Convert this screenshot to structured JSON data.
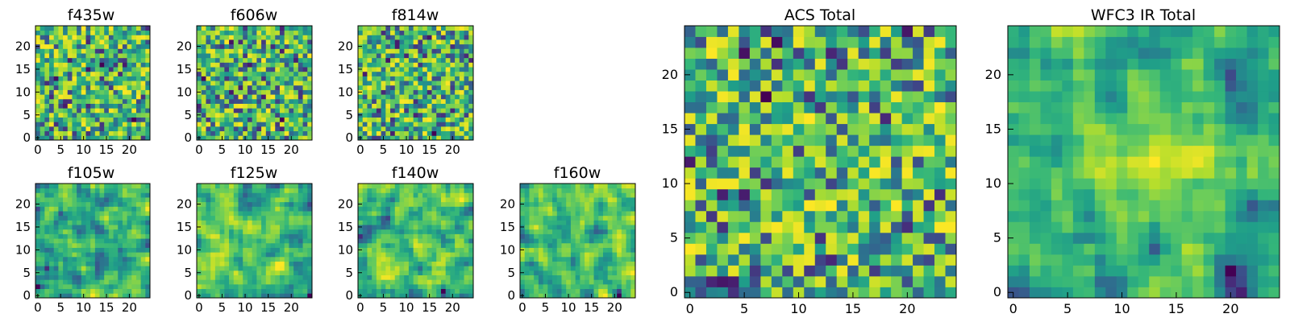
{
  "chart_data": [
    {
      "id": "f435w",
      "type": "heatmap",
      "title": "f435w",
      "grid_size": 25,
      "xlim": [
        0,
        24
      ],
      "ylim": [
        0,
        24
      ],
      "x_ticks": [
        "0",
        "5",
        "10",
        "15",
        "20"
      ],
      "y_ticks": [
        "0",
        "5",
        "10",
        "15",
        "20"
      ],
      "colormap": "viridis",
      "value_range": [
        0,
        1
      ],
      "texture": "noise",
      "seed": 11,
      "smooth": 0
    },
    {
      "id": "f606w",
      "type": "heatmap",
      "title": "f606w",
      "grid_size": 25,
      "xlim": [
        0,
        24
      ],
      "ylim": [
        0,
        24
      ],
      "x_ticks": [
        "0",
        "5",
        "10",
        "15",
        "20"
      ],
      "y_ticks": [
        "0",
        "5",
        "10",
        "15",
        "20"
      ],
      "colormap": "viridis",
      "value_range": [
        0,
        1
      ],
      "texture": "noise",
      "seed": 23,
      "smooth": 0
    },
    {
      "id": "f814w",
      "type": "heatmap",
      "title": "f814w",
      "grid_size": 25,
      "xlim": [
        0,
        24
      ],
      "ylim": [
        0,
        24
      ],
      "x_ticks": [
        "0",
        "5",
        "10",
        "15",
        "20"
      ],
      "y_ticks": [
        "0",
        "5",
        "10",
        "15",
        "20"
      ],
      "colormap": "viridis",
      "value_range": [
        0,
        1
      ],
      "texture": "noise",
      "seed": 37,
      "smooth": 0
    },
    {
      "id": "f105w",
      "type": "heatmap",
      "title": "f105w",
      "grid_size": 25,
      "xlim": [
        0,
        24
      ],
      "ylim": [
        0,
        24
      ],
      "x_ticks": [
        "0",
        "5",
        "10",
        "15",
        "20"
      ],
      "y_ticks": [
        "0",
        "5",
        "10",
        "15",
        "20"
      ],
      "colormap": "viridis",
      "value_range": [
        0,
        1
      ],
      "texture": "correlated noise",
      "seed": 41,
      "smooth": 1
    },
    {
      "id": "f125w",
      "type": "heatmap",
      "title": "f125w",
      "grid_size": 25,
      "xlim": [
        0,
        24
      ],
      "ylim": [
        0,
        24
      ],
      "x_ticks": [
        "0",
        "5",
        "10",
        "15",
        "20"
      ],
      "y_ticks": [
        "0",
        "5",
        "10",
        "15",
        "20"
      ],
      "colormap": "viridis",
      "value_range": [
        0,
        1
      ],
      "texture": "correlated noise",
      "seed": 53,
      "smooth": 1
    },
    {
      "id": "f140w",
      "type": "heatmap",
      "title": "f140w",
      "grid_size": 25,
      "xlim": [
        0,
        24
      ],
      "ylim": [
        0,
        24
      ],
      "x_ticks": [
        "0",
        "5",
        "10",
        "15",
        "20"
      ],
      "y_ticks": [
        "0",
        "5",
        "10",
        "15",
        "20"
      ],
      "colormap": "viridis",
      "value_range": [
        0,
        1
      ],
      "texture": "correlated noise",
      "seed": 67,
      "smooth": 1
    },
    {
      "id": "f160w",
      "type": "heatmap",
      "title": "f160w",
      "grid_size": 25,
      "xlim": [
        0,
        24
      ],
      "ylim": [
        0,
        24
      ],
      "x_ticks": [
        "0",
        "5",
        "10",
        "15",
        "20"
      ],
      "y_ticks": [
        "0",
        "5",
        "10",
        "15",
        "20"
      ],
      "colormap": "viridis",
      "value_range": [
        0,
        1
      ],
      "texture": "correlated noise",
      "seed": 79,
      "smooth": 1
    },
    {
      "id": "acs-total",
      "type": "heatmap",
      "title": "ACS Total",
      "grid_size": 25,
      "xlim": [
        0,
        24
      ],
      "ylim": [
        0,
        24
      ],
      "x_ticks": [
        "0",
        "5",
        "10",
        "15",
        "20"
      ],
      "y_ticks": [
        "0",
        "5",
        "10",
        "15",
        "20"
      ],
      "colormap": "viridis",
      "value_range": [
        0,
        1
      ],
      "texture": "noise",
      "seed": 97,
      "smooth": 0
    },
    {
      "id": "wfc3-ir-total",
      "type": "heatmap",
      "title": "WFC3 IR Total",
      "grid_size": 25,
      "xlim": [
        0,
        24
      ],
      "ylim": [
        0,
        24
      ],
      "x_ticks": [
        "0",
        "5",
        "10",
        "15",
        "20"
      ],
      "y_ticks": [
        "0",
        "5",
        "10",
        "15",
        "20"
      ],
      "colormap": "viridis",
      "value_range": [
        0,
        1
      ],
      "texture": "correlated noise with central bright region",
      "seed": 131,
      "smooth": 1
    }
  ]
}
